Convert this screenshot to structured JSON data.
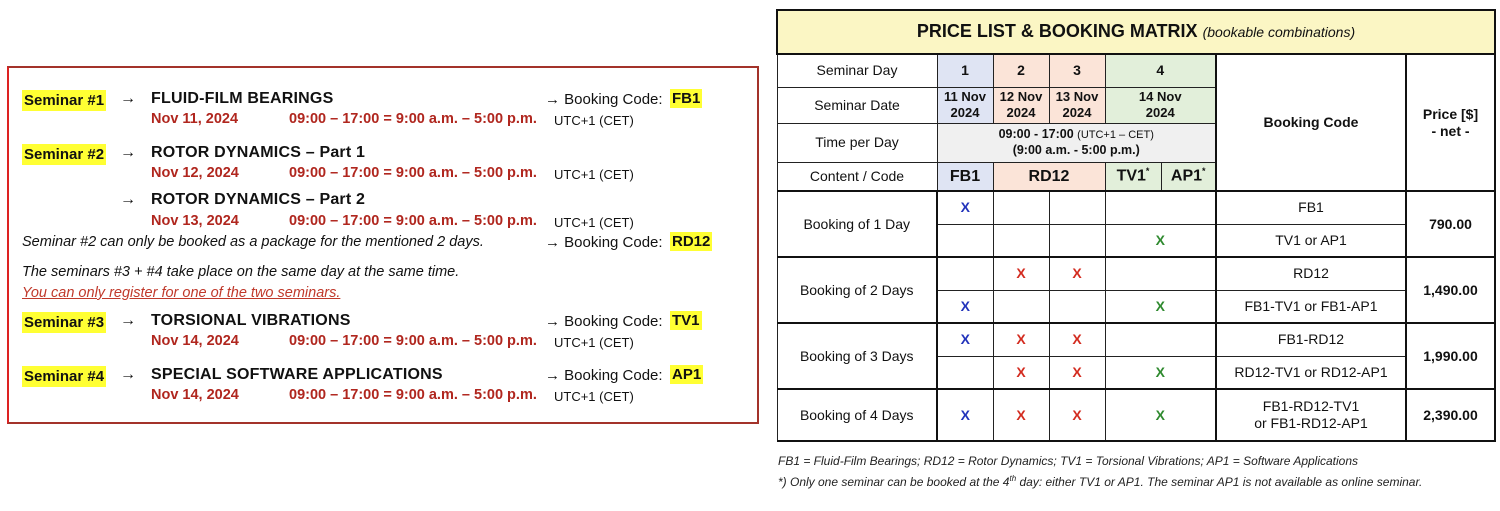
{
  "left": {
    "seminars": [
      {
        "badge": "Seminar #1",
        "title": "FLUID-FILM BEARINGS",
        "date": "Nov 11, 2024",
        "time": "09:00 – 17:00 = 9:00 a.m. – 5:00 p.m.",
        "tz": "UTC+1 (CET)",
        "booking_label": "→ Booking Code:",
        "code": "FB1"
      },
      {
        "badge": "Seminar #2",
        "title": "ROTOR DYNAMICS – Part 1",
        "date": "Nov 12, 2024",
        "time": "09:00 – 17:00 = 9:00 a.m. – 5:00 p.m.",
        "tz": "UTC+1 (CET)"
      },
      {
        "title": "ROTOR DYNAMICS – Part 2",
        "date": "Nov 13, 2024",
        "time": "09:00 – 17:00 = 9:00 a.m. – 5:00 p.m.",
        "tz": "UTC+1 (CET)"
      },
      {
        "badge": "Seminar #3",
        "title": "TORSIONAL VIBRATIONS",
        "date": "Nov 14, 2024",
        "time": "09:00 – 17:00 = 9:00 a.m. – 5:00 p.m.",
        "tz": "UTC+1 (CET)",
        "booking_label": "→ Booking Code:",
        "code": "TV1"
      },
      {
        "badge": "Seminar #4",
        "title": "SPECIAL SOFTWARE APPLICATIONS",
        "date": "Nov 14, 2024",
        "time": "09:00 – 17:00 = 9:00 a.m. – 5:00 p.m.",
        "tz": "UTC+1 (CET)",
        "booking_label": "→ Booking Code:",
        "code": "AP1"
      }
    ],
    "arrow": "→",
    "package_note": "Seminar #2 can only be booked as a package for the mentioned 2 days.",
    "package_booking_label": "→ Booking Code:",
    "package_code": "RD12",
    "same_day_note": "The seminars #3 + #4 take place on the same day at the same time.",
    "warning": "You can only register for one of the two seminars."
  },
  "matrix": {
    "title": "PRICE LIST & BOOKING MATRIX",
    "subtitle": "(bookable combinations)",
    "row_labels": {
      "day": "Seminar Day",
      "date": "Seminar Date",
      "time": "Time per Day",
      "content": "Content / Code"
    },
    "days": [
      "1",
      "2",
      "3",
      "4"
    ],
    "dates": [
      [
        "11 Nov",
        "2024"
      ],
      [
        "12 Nov",
        "2024"
      ],
      [
        "13 Nov",
        "2024"
      ],
      [
        "14 Nov",
        "2024"
      ]
    ],
    "time_main": "09:00 - 17:00",
    "time_tz": "(UTC+1 – CET)",
    "time_ampm": "(9:00 a.m. - 5:00 p.m.)",
    "codes": [
      "FB1",
      "RD12",
      "TV1",
      "AP1"
    ],
    "star": "*",
    "booking_code_header": "Booking Code",
    "price_header": "Price [$]",
    "price_sub": "- net -",
    "mark": "X",
    "groups": [
      {
        "label": "Booking of 1 Day",
        "price": "790.00",
        "rows": [
          {
            "marks": [
              1,
              0,
              0,
              0
            ],
            "code": "FB1"
          },
          {
            "marks": [
              0,
              0,
              0,
              1
            ],
            "code": "TV1 or AP1"
          }
        ]
      },
      {
        "label": "Booking of 2 Days",
        "price": "1,490.00",
        "rows": [
          {
            "marks": [
              0,
              1,
              1,
              0
            ],
            "code": "RD12"
          },
          {
            "marks": [
              1,
              0,
              0,
              1
            ],
            "code": "FB1-TV1 or FB1-AP1"
          }
        ]
      },
      {
        "label": "Booking of 3 Days",
        "price": "1,990.00",
        "rows": [
          {
            "marks": [
              1,
              1,
              1,
              0
            ],
            "code": "FB1-RD12"
          },
          {
            "marks": [
              0,
              1,
              1,
              1
            ],
            "code": "RD12-TV1 or RD12-AP1"
          }
        ]
      },
      {
        "label": "Booking of 4 Days",
        "price": "2,390.00",
        "rows": [
          {
            "marks": [
              1,
              1,
              1,
              1
            ],
            "code": "FB1-RD12-TV1\nor FB1-RD12-AP1"
          }
        ]
      }
    ],
    "colors": {
      "day1": "#2233bb",
      "day23": "#d32b1f",
      "day4": "#2f8a2f"
    }
  },
  "footnote": {
    "legend": "FB1 = Fluid-Film Bearings; RD12 = Rotor Dynamics; TV1 = Torsional Vibrations; AP1 = Software Applications",
    "note_pre": "*) Only one seminar can be booked at the 4",
    "note_sup": "th",
    "note_post": " day: either TV1 or AP1. The seminar AP1 is not available as online seminar."
  }
}
